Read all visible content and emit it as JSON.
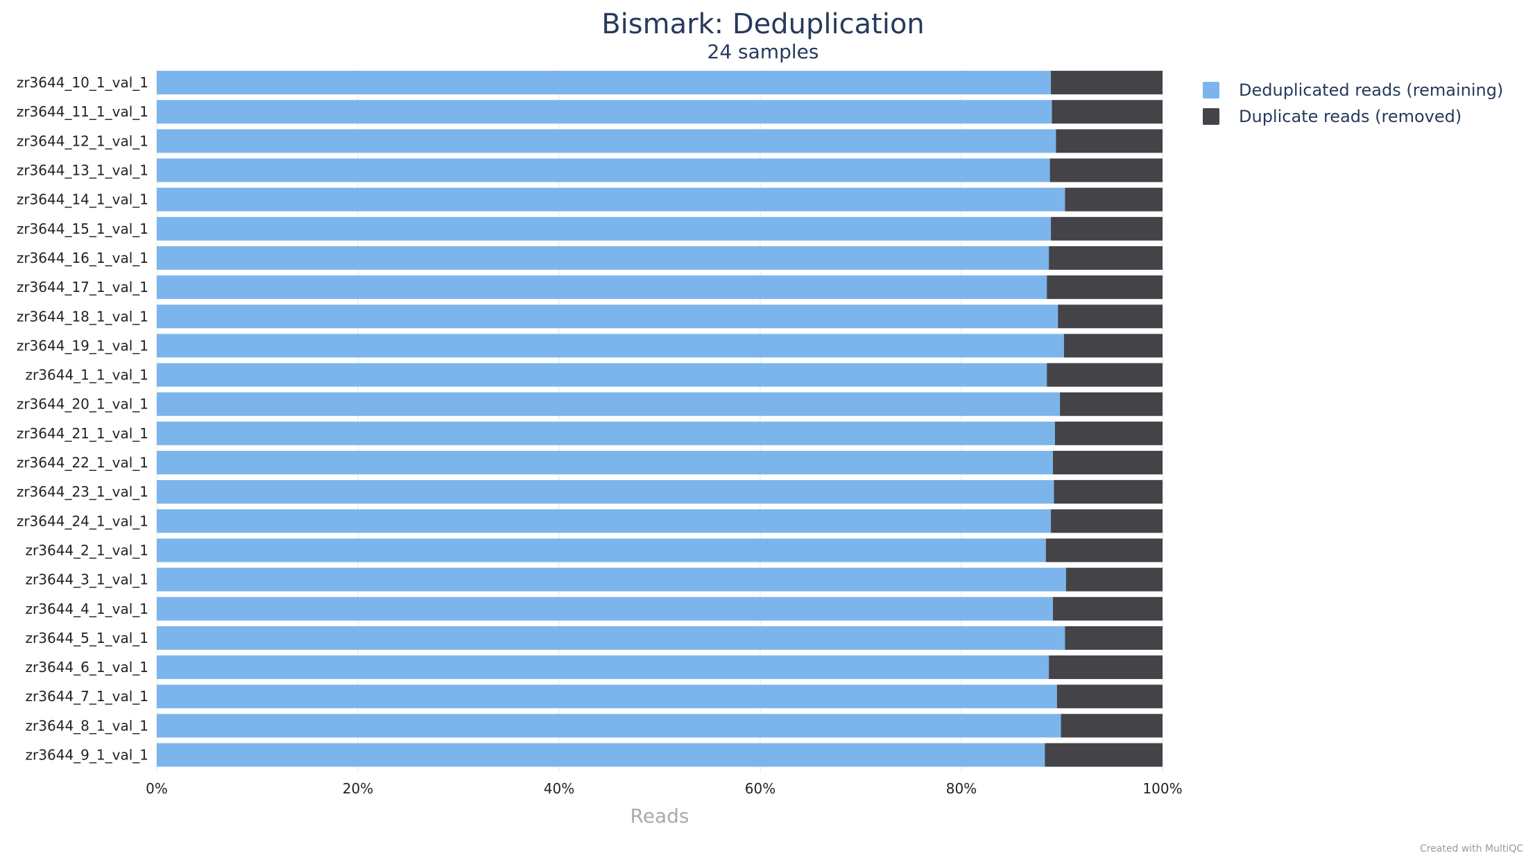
{
  "chart_data": {
    "type": "bar",
    "orientation": "horizontal",
    "stacking": "percent",
    "title": "Bismark: Deduplication",
    "subtitle": "24 samples",
    "xlabel": "Reads",
    "ylabel": "",
    "xlim": [
      0,
      100
    ],
    "x_ticks": [
      "0%",
      "20%",
      "40%",
      "60%",
      "80%",
      "100%"
    ],
    "grid": true,
    "legend_position": "top-right",
    "categories": [
      "zr3644_10_1_val_1",
      "zr3644_11_1_val_1",
      "zr3644_12_1_val_1",
      "zr3644_13_1_val_1",
      "zr3644_14_1_val_1",
      "zr3644_15_1_val_1",
      "zr3644_16_1_val_1",
      "zr3644_17_1_val_1",
      "zr3644_18_1_val_1",
      "zr3644_19_1_val_1",
      "zr3644_1_1_val_1",
      "zr3644_20_1_val_1",
      "zr3644_21_1_val_1",
      "zr3644_22_1_val_1",
      "zr3644_23_1_val_1",
      "zr3644_24_1_val_1",
      "zr3644_2_1_val_1",
      "zr3644_3_1_val_1",
      "zr3644_4_1_val_1",
      "zr3644_5_1_val_1",
      "zr3644_6_1_val_1",
      "zr3644_7_1_val_1",
      "zr3644_8_1_val_1",
      "zr3644_9_1_val_1"
    ],
    "series": [
      {
        "name": "Deduplicated reads (remaining)",
        "color": "#7cb5ec",
        "values": [
          88.9,
          89.0,
          89.4,
          88.8,
          90.3,
          88.9,
          88.7,
          88.5,
          89.6,
          90.2,
          88.5,
          89.8,
          89.3,
          89.1,
          89.2,
          88.9,
          88.4,
          90.4,
          89.1,
          90.3,
          88.7,
          89.5,
          89.9,
          88.3
        ]
      },
      {
        "name": "Duplicate reads (removed)",
        "color": "#434348",
        "values": [
          11.1,
          11.0,
          10.6,
          11.2,
          9.7,
          11.1,
          11.3,
          11.5,
          10.4,
          9.8,
          11.5,
          10.2,
          10.7,
          10.9,
          10.8,
          11.1,
          11.6,
          9.6,
          10.9,
          9.7,
          11.3,
          10.5,
          10.1,
          11.7
        ]
      }
    ]
  },
  "credit": "Created with MultiQC"
}
